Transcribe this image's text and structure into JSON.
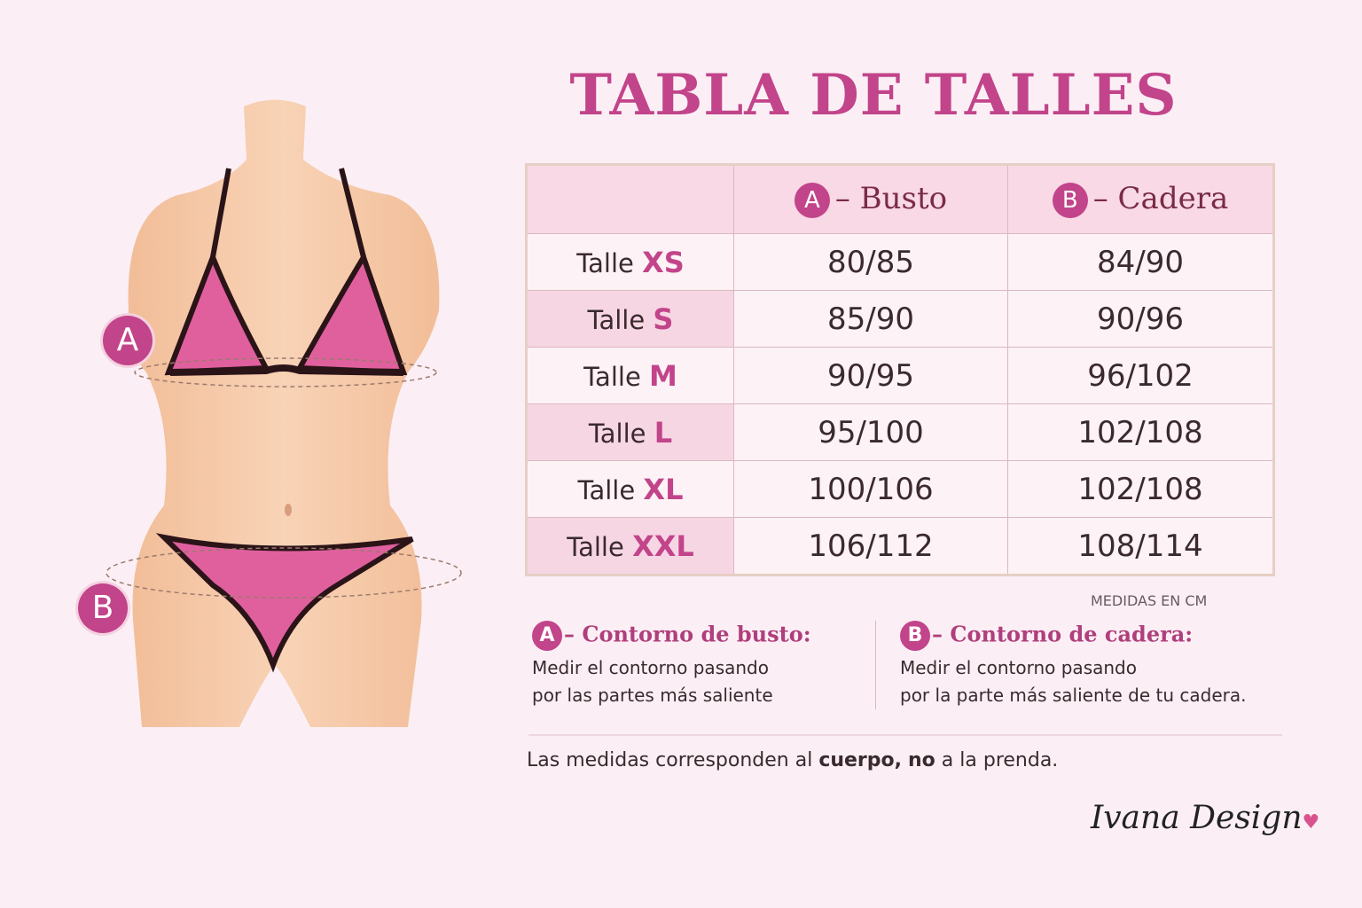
{
  "title": "TABLA DE TALLES",
  "table": {
    "headers": [
      {
        "badge": "A",
        "label": "– Busto"
      },
      {
        "badge": "B",
        "label": "– Cadera"
      }
    ],
    "rows": [
      {
        "prefix": "Talle",
        "size": "XS",
        "busto": "80/85",
        "cadera": "84/90"
      },
      {
        "prefix": "Talle",
        "size": "S",
        "busto": "85/90",
        "cadera": "90/96"
      },
      {
        "prefix": "Talle",
        "size": "M",
        "busto": "90/95",
        "cadera": "96/102"
      },
      {
        "prefix": "Talle",
        "size": "L",
        "busto": "95/100",
        "cadera": "102/108"
      },
      {
        "prefix": "Talle",
        "size": "XL",
        "busto": "100/106",
        "cadera": "102/108"
      },
      {
        "prefix": "Talle",
        "size": "XXL",
        "busto": "106/112",
        "cadera": "108/114"
      }
    ]
  },
  "units": "MEDIDAS EN CM",
  "notes": [
    {
      "badge": "A",
      "heading": "– Contorno de busto:",
      "line1": "Medir el contorno pasando",
      "line2": "por las partes más saliente"
    },
    {
      "badge": "B",
      "heading": "– Contorno de cadera:",
      "line1": "Medir el contorno pasando",
      "line2": "por la parte más saliente de tu cadera."
    }
  ],
  "footer": {
    "pre": "Las medidas corresponden al ",
    "bold1": "cuerpo,",
    "mid": " ",
    "bold2": "no",
    "post": " a la prenda."
  },
  "brand": "Ivana Design",
  "figure_marks": {
    "bust": "A",
    "hip": "B"
  },
  "colors": {
    "accent": "#c2448a",
    "background": "#fbeff5",
    "skin": "#f6c9a8",
    "bikini": "#e0609e"
  }
}
